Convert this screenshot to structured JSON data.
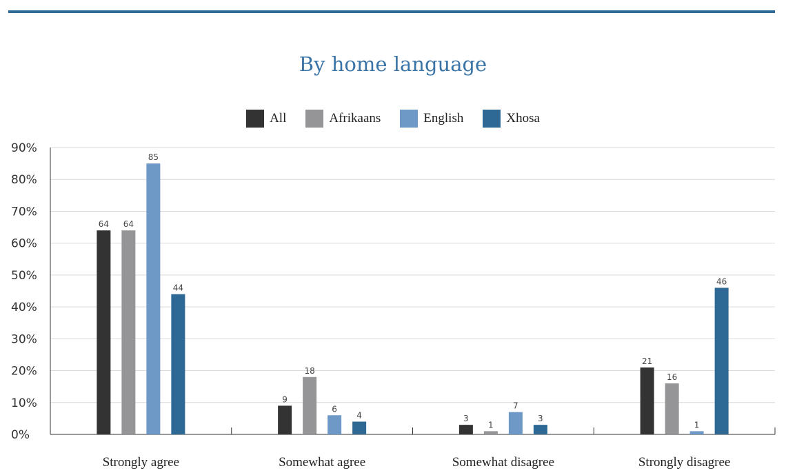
{
  "chart_data": {
    "type": "bar",
    "title": "By home language",
    "categories": [
      "Strongly agree",
      "Somewhat agree",
      "Somewhat disagree",
      "Strongly disagree"
    ],
    "series": [
      {
        "name": "All",
        "color": "#333333",
        "values": [
          64,
          9,
          3,
          21
        ]
      },
      {
        "name": "Afrikaans",
        "color": "#959497",
        "values": [
          64,
          18,
          1,
          16
        ]
      },
      {
        "name": "English",
        "color": "#6e98c6",
        "values": [
          85,
          6,
          7,
          1
        ]
      },
      {
        "name": "Xhosa",
        "color": "#2e6895",
        "values": [
          44,
          4,
          3,
          46
        ]
      }
    ],
    "yticks": [
      "0%",
      "10%",
      "20%",
      "30%",
      "40%",
      "50%",
      "60%",
      "70%",
      "80%",
      "90%"
    ],
    "ylim": [
      0,
      90
    ],
    "grid": true,
    "legend_position": "top-center"
  }
}
